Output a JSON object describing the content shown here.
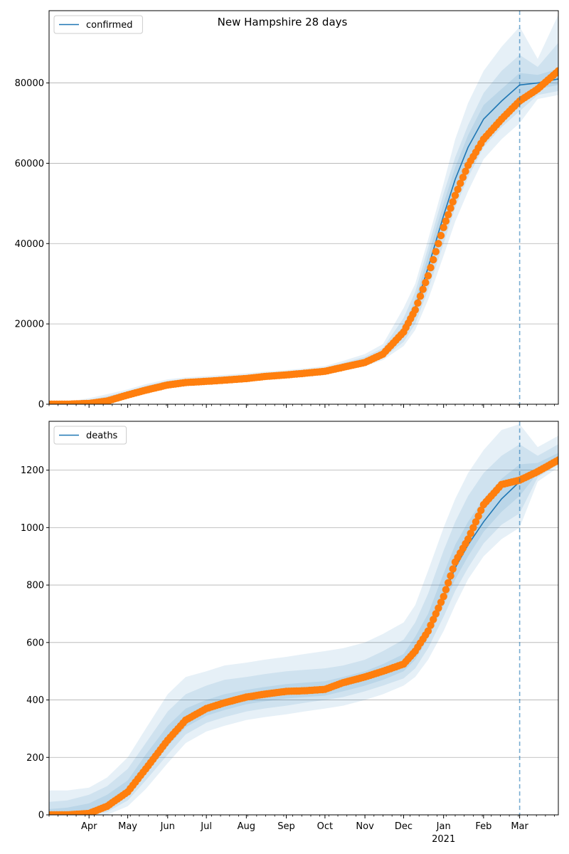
{
  "figure": {
    "suptitle": "New Hampshire 28 days"
  },
  "colors": {
    "model": "#1f77b4",
    "observed": "#ff7f0e",
    "band": "#1f77b4",
    "grid": "#b0b0b0"
  },
  "chart_data": [
    {
      "type": "line",
      "name": "confirmed",
      "legend": {
        "entries": [
          "confirmed"
        ],
        "placement": "top-left"
      },
      "grid": "horizontal",
      "xlim": [
        "2020-03-01",
        "2021-03-31"
      ],
      "x_tick_labels": [
        "Apr",
        "May",
        "Jun",
        "Jul",
        "Aug",
        "Sep",
        "Oct",
        "Nov",
        "Dec",
        "Jan",
        "Feb",
        "Mar"
      ],
      "x_tick_dates": [
        "2020-04-01",
        "2020-05-01",
        "2020-06-01",
        "2020-07-01",
        "2020-08-01",
        "2020-09-01",
        "2020-10-01",
        "2020-11-01",
        "2020-12-01",
        "2021-01-01",
        "2021-02-01",
        "2021-03-01"
      ],
      "x_year_label": "",
      "ylim": [
        0,
        98000
      ],
      "y_ticks": [
        0,
        20000,
        40000,
        60000,
        80000
      ],
      "forecast_start": "2021-03-01",
      "x": [
        "2020-03-01",
        "2020-03-15",
        "2020-04-01",
        "2020-04-15",
        "2020-05-01",
        "2020-05-15",
        "2020-06-01",
        "2020-06-15",
        "2020-07-01",
        "2020-07-15",
        "2020-08-01",
        "2020-08-15",
        "2020-09-01",
        "2020-09-15",
        "2020-10-01",
        "2020-10-15",
        "2020-11-01",
        "2020-11-15",
        "2020-12-01",
        "2020-12-10",
        "2020-12-20",
        "2021-01-01",
        "2021-01-10",
        "2021-01-20",
        "2021-02-01",
        "2021-02-15",
        "2021-03-01",
        "2021-03-15",
        "2021-03-31"
      ],
      "series": [
        {
          "name": "confirmed",
          "role": "model",
          "values": [
            0,
            0,
            300,
            1000,
            2500,
            3800,
            5000,
            5500,
            5800,
            6100,
            6500,
            7000,
            7400,
            7800,
            8300,
            9300,
            10700,
            12500,
            18000,
            24000,
            34000,
            47000,
            56000,
            64000,
            71000,
            75500,
            79500,
            80000,
            81000
          ],
          "bands": [
            {
              "lower": [
                0,
                0,
                0,
                300,
                1600,
                2900,
                3900,
                4600,
                4900,
                5200,
                5600,
                6100,
                6500,
                6900,
                7400,
                8300,
                9500,
                11000,
                14500,
                18500,
                26000,
                37000,
                45500,
                53000,
                61000,
                66000,
                70000,
                76000,
                77000
              ],
              "upper": [
                0,
                600,
                1500,
                2500,
                3700,
                5000,
                6200,
                6700,
                7000,
                7300,
                7700,
                8100,
                8500,
                8900,
                9500,
                10800,
                12500,
                15000,
                24000,
                30000,
                41000,
                55000,
                66000,
                75000,
                83000,
                89000,
                94000,
                86000,
                97000
              ]
            },
            {
              "lower": [
                0,
                0,
                0,
                500,
                1900,
                3200,
                4200,
                4900,
                5200,
                5500,
                5900,
                6400,
                6800,
                7200,
                7700,
                8600,
                9900,
                11500,
                15500,
                20000,
                28500,
                40000,
                49000,
                56500,
                64000,
                69000,
                73000,
                77000,
                78000
              ],
              "upper": [
                0,
                400,
                1100,
                2000,
                3300,
                4600,
                5800,
                6300,
                6600,
                6900,
                7300,
                7700,
                8100,
                8500,
                9100,
                10300,
                11800,
                14000,
                21500,
                28000,
                39000,
                52500,
                61500,
                69500,
                77500,
                83000,
                87000,
                84000,
                90000
              ]
            },
            {
              "lower": [
                0,
                0,
                100,
                700,
                2200,
                3500,
                4600,
                5200,
                5500,
                5800,
                6200,
                6700,
                7100,
                7500,
                8000,
                9000,
                10300,
                12000,
                16700,
                22000,
                31000,
                43500,
                52500,
                60000,
                67500,
                72000,
                76000,
                78500,
                79500
              ],
              "upper": [
                0,
                200,
                600,
                1400,
                2900,
                4200,
                5400,
                5900,
                6200,
                6500,
                6900,
                7300,
                7700,
                8100,
                8700,
                9700,
                11200,
                13200,
                19500,
                26000,
                37000,
                50000,
                59000,
                67000,
                74500,
                78500,
                82500,
                82000,
                83500
              ]
            }
          ]
        },
        {
          "name": "observed",
          "role": "observed",
          "values": [
            0,
            0,
            200,
            800,
            2300,
            3500,
            4800,
            5400,
            5700,
            6000,
            6400,
            6900,
            7300,
            7700,
            8200,
            9200,
            10400,
            12500,
            18000,
            23500,
            32000,
            44000,
            52000,
            59500,
            66000,
            71000,
            75500,
            78500,
            83000
          ]
        }
      ]
    },
    {
      "type": "line",
      "name": "deaths",
      "legend": {
        "entries": [
          "deaths"
        ],
        "placement": "top-left"
      },
      "grid": "horizontal",
      "xlim": [
        "2020-03-01",
        "2021-03-31"
      ],
      "x_tick_labels": [
        "Apr",
        "May",
        "Jun",
        "Jul",
        "Aug",
        "Sep",
        "Oct",
        "Nov",
        "Dec",
        "Jan",
        "Feb",
        "Mar"
      ],
      "x_tick_dates": [
        "2020-04-01",
        "2020-05-01",
        "2020-06-01",
        "2020-07-01",
        "2020-08-01",
        "2020-09-01",
        "2020-10-01",
        "2020-11-01",
        "2020-12-01",
        "2021-01-01",
        "2021-02-01",
        "2021-03-01"
      ],
      "x_year_label": "2021",
      "ylim": [
        0,
        1370
      ],
      "y_ticks": [
        0,
        200,
        400,
        600,
        800,
        1000,
        1200
      ],
      "forecast_start": "2021-03-01",
      "x": [
        "2020-03-01",
        "2020-03-15",
        "2020-04-01",
        "2020-04-15",
        "2020-05-01",
        "2020-05-15",
        "2020-06-01",
        "2020-06-15",
        "2020-07-01",
        "2020-07-15",
        "2020-08-01",
        "2020-08-15",
        "2020-09-01",
        "2020-09-15",
        "2020-10-01",
        "2020-10-15",
        "2020-11-01",
        "2020-11-15",
        "2020-12-01",
        "2020-12-10",
        "2020-12-20",
        "2021-01-01",
        "2021-01-10",
        "2021-01-20",
        "2021-02-01",
        "2021-02-15",
        "2021-03-01",
        "2021-03-15",
        "2021-03-31"
      ],
      "series": [
        {
          "name": "deaths",
          "role": "model",
          "values": [
            0,
            0,
            10,
            40,
            90,
            170,
            270,
            330,
            370,
            390,
            410,
            420,
            430,
            435,
            440,
            455,
            475,
            495,
            525,
            570,
            640,
            760,
            860,
            940,
            1020,
            1100,
            1160,
            1200,
            1240
          ],
          "bands": [
            {
              "lower": [
                0,
                0,
                0,
                0,
                30,
                90,
                180,
                250,
                290,
                310,
                330,
                340,
                350,
                360,
                370,
                380,
                400,
                420,
                450,
                480,
                540,
                640,
                730,
                820,
                900,
                960,
                1000,
                1160,
                1210
              ],
              "upper": [
                85,
                85,
                95,
                130,
                200,
                300,
                420,
                480,
                500,
                520,
                530,
                540,
                550,
                560,
                570,
                580,
                600,
                630,
                670,
                730,
                850,
                1000,
                1100,
                1190,
                1270,
                1340,
                1360,
                1280,
                1320
              ]
            },
            {
              "lower": [
                0,
                0,
                0,
                10,
                50,
                120,
                210,
                280,
                320,
                340,
                360,
                370,
                380,
                390,
                400,
                410,
                430,
                450,
                475,
                510,
                580,
                690,
                780,
                860,
                945,
                1010,
                1050,
                1175,
                1220
              ],
              "upper": [
                45,
                50,
                70,
                100,
                160,
                250,
                360,
                420,
                450,
                470,
                480,
                490,
                500,
                505,
                510,
                520,
                540,
                570,
                610,
                670,
                770,
                920,
                1020,
                1110,
                1190,
                1250,
                1290,
                1250,
                1290
              ]
            },
            {
              "lower": [
                0,
                0,
                0,
                20,
                70,
                145,
                240,
                305,
                345,
                365,
                385,
                395,
                405,
                410,
                415,
                430,
                450,
                470,
                500,
                540,
                615,
                730,
                820,
                900,
                985,
                1055,
                1110,
                1190,
                1230
              ],
              "upper": [
                20,
                25,
                40,
                70,
                120,
                210,
                310,
                370,
                400,
                420,
                435,
                445,
                455,
                460,
                465,
                480,
                500,
                525,
                560,
                620,
                700,
                840,
                940,
                1020,
                1100,
                1170,
                1220,
                1225,
                1260
              ]
            }
          ]
        },
        {
          "name": "observed",
          "role": "observed",
          "values": [
            0,
            0,
            5,
            30,
            80,
            160,
            260,
            330,
            370,
            390,
            410,
            420,
            430,
            432,
            437,
            460,
            480,
            500,
            525,
            570,
            640,
            760,
            880,
            960,
            1080,
            1150,
            1165,
            1195,
            1235
          ]
        }
      ]
    }
  ]
}
